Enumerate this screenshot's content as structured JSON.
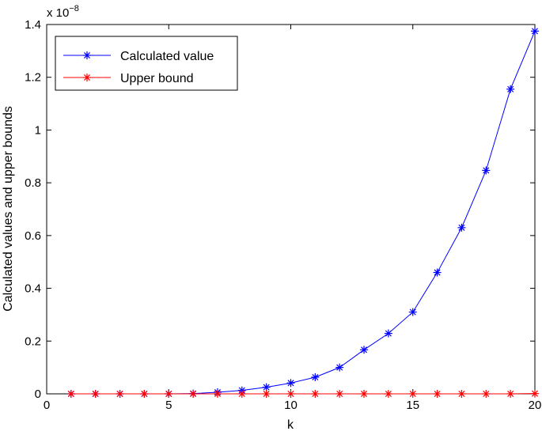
{
  "chart_data": {
    "type": "line",
    "title": "",
    "xlabel": "k",
    "ylabel": "Calculated values and upper bounds",
    "exponent_label": {
      "base": "x 10",
      "power": "−8"
    },
    "xlim": [
      0,
      20
    ],
    "ylim": [
      0,
      1.4
    ],
    "xticks": [
      0,
      5,
      10,
      15,
      20
    ],
    "xtick_labels": [
      "0",
      "5",
      "10",
      "15",
      "20"
    ],
    "yticks": [
      0,
      0.2,
      0.4,
      0.6,
      0.8,
      1,
      1.2,
      1.4
    ],
    "ytick_labels": [
      "0",
      "0.2",
      "0.4",
      "0.6",
      "0.8",
      "1",
      "1.2",
      "1.4"
    ],
    "grid": false,
    "legend_position": "top-left",
    "x": [
      1,
      2,
      3,
      4,
      5,
      6,
      7,
      8,
      9,
      10,
      11,
      12,
      13,
      14,
      15,
      16,
      17,
      18,
      19,
      20
    ],
    "series": [
      {
        "name": "Calculated value",
        "color": "#0000ff",
        "marker": "asterisk",
        "values": [
          0,
          0,
          0,
          0,
          0,
          0.001,
          0.006,
          0.013,
          0.025,
          0.041,
          0.063,
          0.1,
          0.167,
          0.229,
          0.31,
          0.46,
          0.63,
          0.847,
          1.155,
          1.375
        ]
      },
      {
        "name": "Upper bound",
        "color": "#ff0000",
        "marker": "asterisk",
        "values": [
          0,
          0,
          0,
          0,
          0,
          0,
          0,
          0,
          0,
          0,
          0,
          0,
          0,
          0,
          0,
          0,
          0,
          0,
          0,
          0.001
        ]
      }
    ]
  }
}
